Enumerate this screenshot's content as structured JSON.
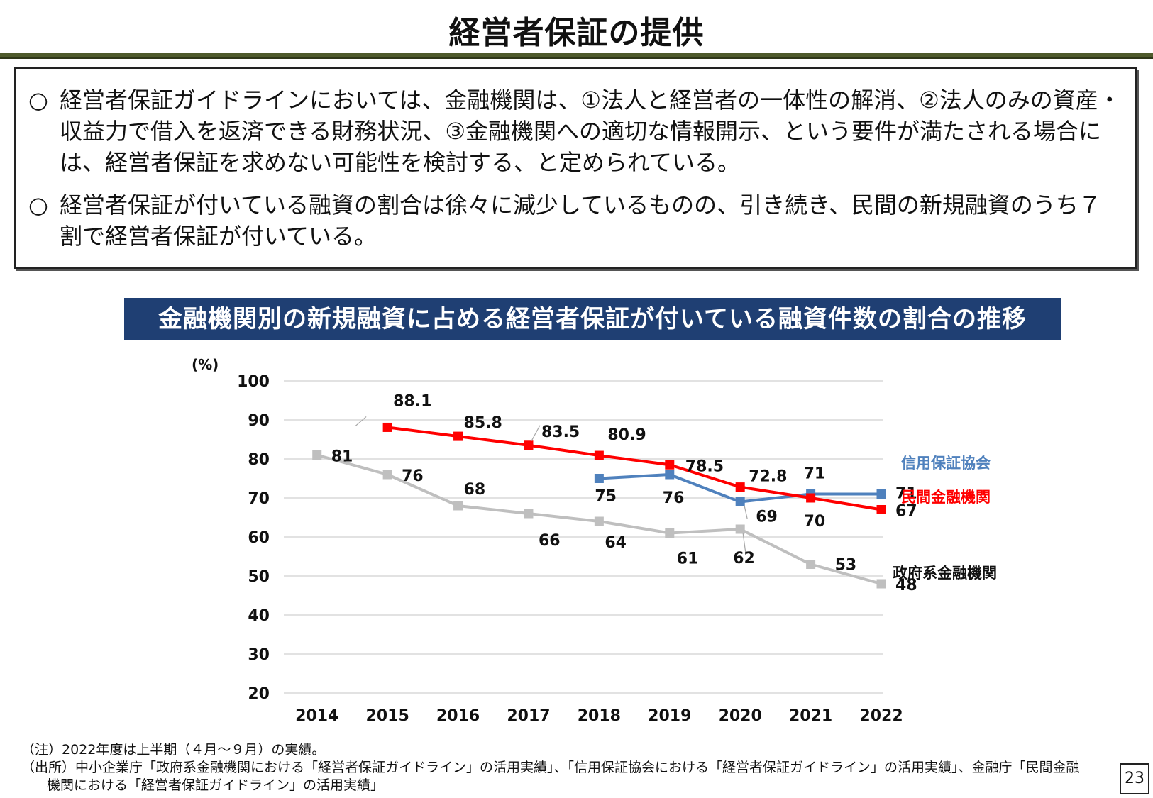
{
  "page": {
    "title": "経営者保証の提供",
    "page_number": "23"
  },
  "summary": {
    "bullet_mark": "○",
    "bullets": [
      "経営者保証ガイドラインにおいては、金融機関は、①法人と経営者の一体性の解消、②法人のみの資産・収益力で借入を返済できる財務状況、③金融機関への適切な情報開示、という要件が満たされる場合には、経営者保証を求めない可能性を検討する、と定められている。",
      "経営者保証が付いている融資の割合は徐々に減少しているものの、引き続き、民間の新規融資のうち７割で経営者保証が付いている。"
    ]
  },
  "notes": {
    "note": "（注）2022年度は上半期（４月～９月）の実績。",
    "source_line1": "（出所）中小企業庁「政府系金融機関における「経営者保証ガイドライン」の活用実績」、「信用保証協会における「経営者保証ガイドライン」の活用実績」、金融庁「民間金融",
    "source_line2": "機関における「経営者保証ガイドライン」の活用実績」"
  },
  "chart_data": {
    "type": "line",
    "title": "金融機関別の新規融資に占める経営者保証が付いている融資件数の割合の推移",
    "xlabel": "",
    "ylabel": "(%)",
    "x": [
      2014,
      2015,
      2016,
      2017,
      2018,
      2019,
      2020,
      2021,
      2022
    ],
    "ylim": [
      20,
      100
    ],
    "yticks": [
      20,
      30,
      40,
      50,
      60,
      70,
      80,
      90,
      100
    ],
    "grid": true,
    "legend": "right, labels beside line ends",
    "series": [
      {
        "name": "信用保証協会",
        "color": "#4f81bd",
        "values": [
          null,
          null,
          null,
          null,
          75,
          76,
          69,
          71,
          71
        ],
        "labels": [
          null,
          null,
          null,
          null,
          "75",
          "76",
          "69",
          "71",
          "71"
        ]
      },
      {
        "name": "民間金融機関",
        "color": "#ff0000",
        "values": [
          null,
          88.1,
          85.8,
          83.5,
          80.9,
          78.5,
          72.8,
          70,
          67
        ],
        "labels": [
          null,
          "88.1",
          "85.8",
          "83.5",
          "80.9",
          "78.5",
          "72.8",
          "70",
          "67"
        ]
      },
      {
        "name": "政府系金融機関",
        "color": "#bfbfbf",
        "values": [
          81,
          76,
          68,
          66,
          64,
          61,
          62,
          53,
          48
        ],
        "labels": [
          "81",
          "76",
          "68",
          "66",
          "64",
          "61",
          "62",
          "53",
          "48"
        ]
      }
    ],
    "series_name_colors": [
      "#4f81bd",
      "#ff0000",
      "#111111"
    ]
  }
}
